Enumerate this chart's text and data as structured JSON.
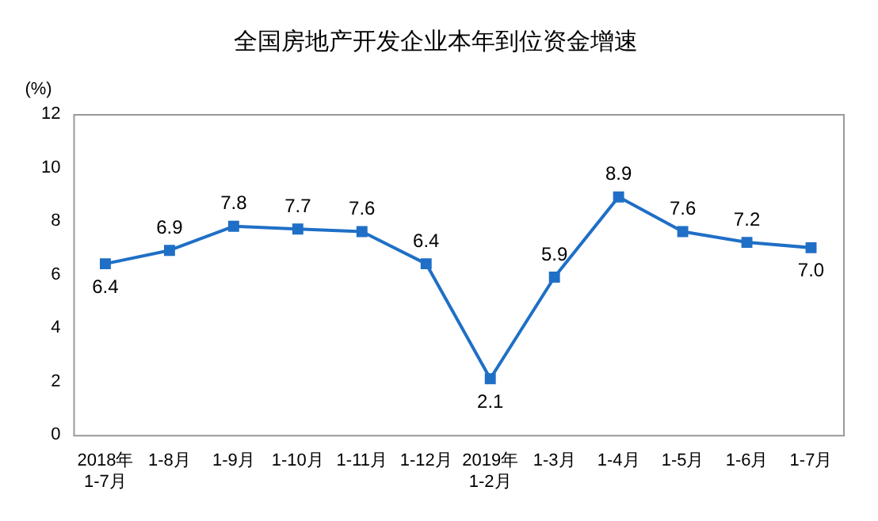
{
  "chart_data": {
    "type": "line",
    "title": "全国房地产开发企业本年到位资金增速",
    "ylabel": "(%)",
    "categories": [
      "2018年\n1-7月",
      "1-8月",
      "1-9月",
      "1-10月",
      "1-11月",
      "1-12月",
      "2019年\n1-2月",
      "1-3月",
      "1-4月",
      "1-5月",
      "1-6月",
      "1-7月"
    ],
    "series": [
      {
        "color": "#1f6fc6",
        "values": [
          6.4,
          6.9,
          7.8,
          7.7,
          7.6,
          6.4,
          2.1,
          5.9,
          8.9,
          7.6,
          7.2,
          7.0
        ],
        "value_labels": [
          "6.4",
          "6.9",
          "7.8",
          "7.7",
          "7.6",
          "6.4",
          "2.1",
          "5.9",
          "8.9",
          "7.6",
          "7.2",
          "7.0"
        ]
      }
    ],
    "ylim": [
      0,
      12
    ],
    "yticks": [
      0,
      2,
      4,
      6,
      8,
      10,
      12
    ],
    "grid": false,
    "legend": false,
    "marker": "square",
    "line_style": "solid"
  }
}
